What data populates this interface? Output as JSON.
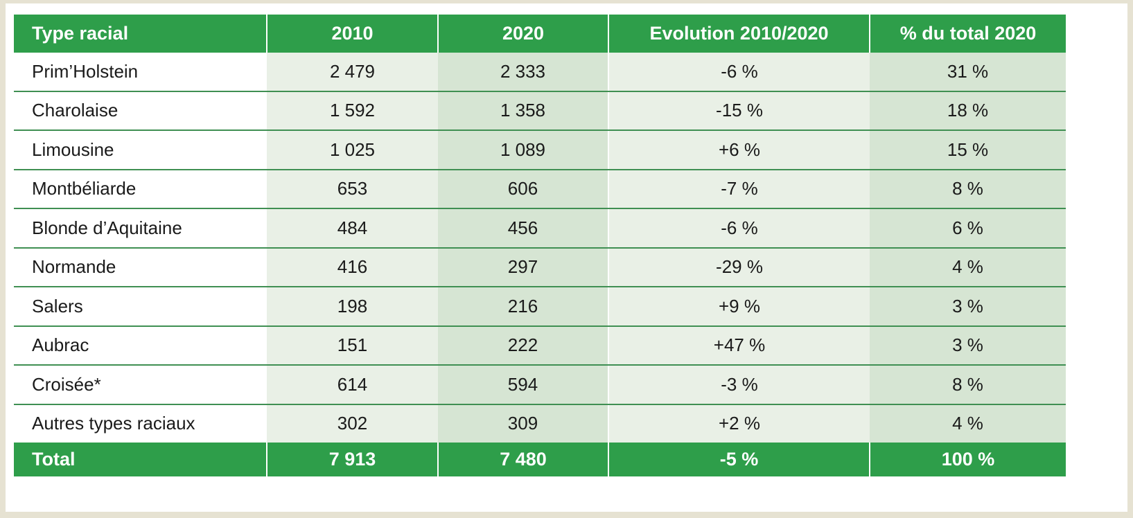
{
  "table": {
    "headers": [
      "Type racial",
      "2010",
      "2020",
      "Evolution 2010/2020",
      "% du total 2020"
    ],
    "rows": [
      [
        "Prim’Holstein",
        "2 479",
        "2 333",
        "-6 %",
        "31 %"
      ],
      [
        "Charolaise",
        "1 592",
        "1 358",
        "-15 %",
        "18 %"
      ],
      [
        "Limousine",
        "1 025",
        "1 089",
        "+6 %",
        "15 %"
      ],
      [
        "Montbéliarde",
        "653",
        "606",
        "-7 %",
        "8 %"
      ],
      [
        "Blonde d’Aquitaine",
        "484",
        "456",
        "-6 %",
        "6 %"
      ],
      [
        "Normande",
        "416",
        "297",
        "-29 %",
        "4 %"
      ],
      [
        "Salers",
        "198",
        "216",
        "+9 %",
        "3 %"
      ],
      [
        "Aubrac",
        "151",
        "222",
        "+47 %",
        "3 %"
      ],
      [
        "Croisée*",
        "614",
        "594",
        "-3 %",
        "8 %"
      ],
      [
        "Autres types raciaux",
        "302",
        "309",
        "+2 %",
        "4 %"
      ]
    ],
    "total": [
      "Total",
      "7 913",
      "7 480",
      "-5 %",
      "100 %"
    ]
  },
  "colors": {
    "header_green": "#2e9e4a",
    "row_line": "#3f8f52",
    "frame": "#e6e2d2"
  }
}
